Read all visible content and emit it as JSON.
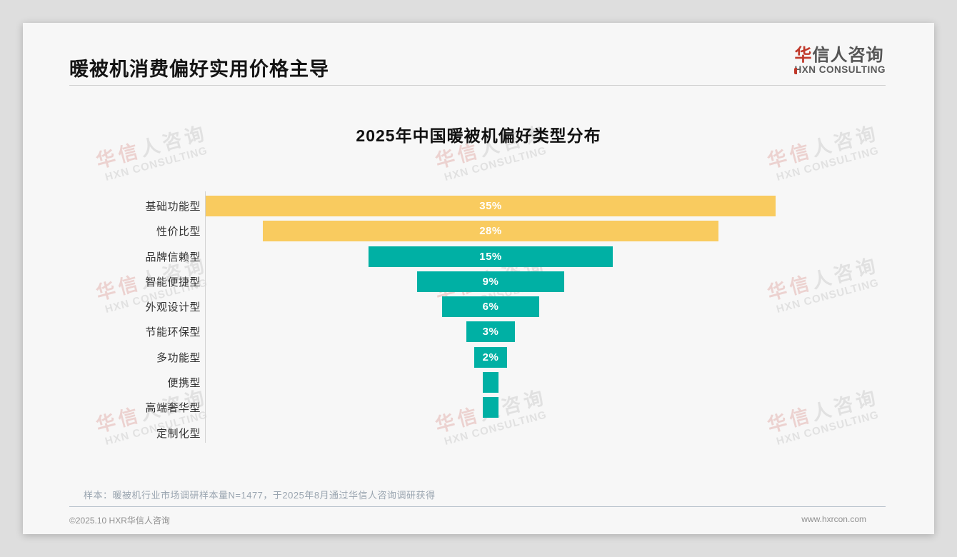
{
  "page": {
    "header": {
      "title": "暖被机消费偏好实用价格主导"
    },
    "logo": {
      "cn_accent": "华",
      "cn_rest": "信人咨询",
      "en_accent": "H",
      "en_rest": "XN CONSULTING"
    },
    "watermark": {
      "cn_accent": "华信",
      "cn_rest": "人咨询",
      "en": "HXN CONSULTING"
    },
    "note": "样本：暖被机行业市场调研样本量N=1477，于2025年8月通过华信人咨询调研获得",
    "footer": {
      "left": "©2025.10 HXR华信人咨询",
      "right": "www.hxrcon.com"
    }
  },
  "chart_data": {
    "type": "bar",
    "variant": "horizontal-centered-funnel",
    "title": "2025年中国暖被机偏好类型分布",
    "categories": [
      "基础功能型",
      "性价比型",
      "品牌信赖型",
      "智能便捷型",
      "外观设计型",
      "节能环保型",
      "多功能型",
      "便携型",
      "高端奢华型",
      "定制化型"
    ],
    "values": [
      35,
      28,
      15,
      9,
      6,
      3,
      2,
      1,
      1,
      0
    ],
    "unit": "%",
    "data_labels": [
      "35%",
      "28%",
      "15%",
      "9%",
      "6%",
      "3%",
      "2%",
      "",
      "",
      ""
    ],
    "colors": [
      "#f9cb5f",
      "#f9cb5f",
      "#00b0a4",
      "#00b0a4",
      "#00b0a4",
      "#00b0a4",
      "#00b0a4",
      "#00b0a4",
      "#00b0a4",
      "#00b0a4"
    ],
    "highlight_color": "#f9cb5f",
    "base_color": "#00b0a4",
    "xlabel": "",
    "ylabel": "",
    "xlim": [
      0,
      35
    ],
    "grid": false,
    "legend": false,
    "xaxis_tick_labels_shown": false
  }
}
